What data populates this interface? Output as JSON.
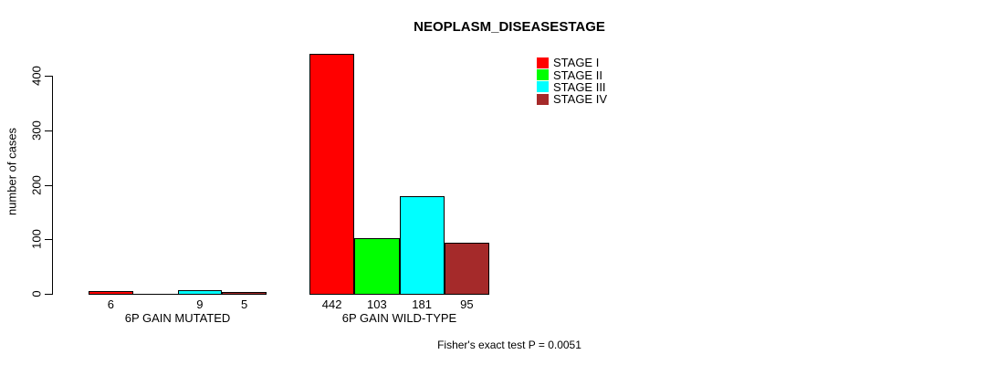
{
  "chart_data": {
    "type": "bar",
    "title": "NEOPLASM_DISEASESTAGE",
    "xlabel": "",
    "ylabel": "number of cases",
    "ylim": [
      0,
      440
    ],
    "yticks": [
      0,
      100,
      200,
      300,
      400
    ],
    "grid": false,
    "legend_position": "top-right",
    "series": [
      {
        "name": "STAGE I",
        "color": "#FF0000"
      },
      {
        "name": "STAGE II",
        "color": "#00FF00"
      },
      {
        "name": "STAGE III",
        "color": "#00FFFF"
      },
      {
        "name": "STAGE IV",
        "color": "#A52A2A"
      }
    ],
    "categories": [
      "6P GAIN MUTATED",
      "6P GAIN WILD-TYPE"
    ],
    "groups": [
      {
        "label": "6P GAIN MUTATED",
        "values": [
          6,
          0,
          9,
          5
        ],
        "value_labels": [
          "6",
          "",
          "9",
          "5"
        ]
      },
      {
        "label": "6P GAIN WILD-TYPE",
        "values": [
          442,
          103,
          181,
          95
        ],
        "value_labels": [
          "442",
          "103",
          "181",
          "95"
        ]
      }
    ],
    "annotation": "Fisher's exact test P = 0.0051"
  }
}
